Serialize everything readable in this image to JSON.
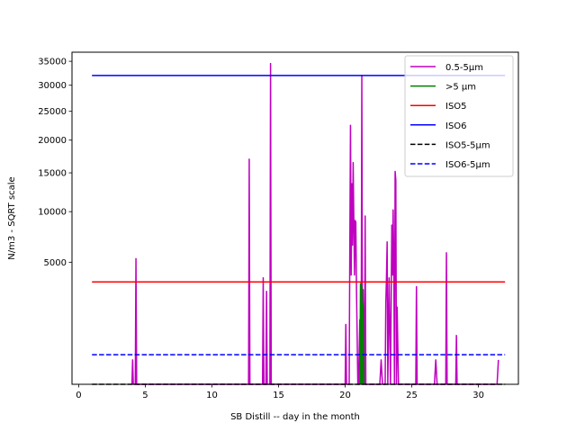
{
  "chart_data": {
    "type": "line",
    "xlabel": "SB Distill -- day in the month",
    "ylabel": "N/m3 - SQRT scale",
    "y_scale": "sqrt",
    "xlim": [
      -0.5,
      33
    ],
    "ylim": [
      0,
      37000
    ],
    "x_ticks": [
      0,
      5,
      10,
      15,
      20,
      25,
      30
    ],
    "y_ticks": [
      5000,
      10000,
      15000,
      20000,
      25000,
      30000,
      35000
    ],
    "grid": false,
    "legend": "top-right",
    "series": [
      {
        "name": "0.5-5µm",
        "color": "#bf00bf",
        "style": "solid",
        "x": [
          4.0,
          4.05,
          4.1,
          4.25,
          4.3,
          4.35,
          12.75,
          12.8,
          12.85,
          13.8,
          13.85,
          13.9,
          14.05,
          14.1,
          14.15,
          14.35,
          14.4,
          14.45,
          20.0,
          20.05,
          20.1,
          20.3,
          20.35,
          20.4,
          20.45,
          20.5,
          20.55,
          20.6,
          20.65,
          20.7,
          20.75,
          20.8,
          20.85,
          20.9,
          20.95,
          21.0,
          21.1,
          21.2,
          21.25,
          21.3,
          21.35,
          21.45,
          21.5,
          21.55,
          22.6,
          22.7,
          22.8,
          23.0,
          23.05,
          23.1,
          23.15,
          23.2,
          23.3,
          23.4,
          23.5,
          23.55,
          23.6,
          23.65,
          23.7,
          23.75,
          23.8,
          23.85,
          23.9,
          24.0,
          25.3,
          25.35,
          25.4,
          26.7,
          26.8,
          26.9,
          27.55,
          27.6,
          27.65,
          28.3,
          28.35,
          28.4,
          31.4,
          31.5
        ],
        "values": [
          0,
          200,
          0,
          0,
          5300,
          0,
          0,
          17000,
          0,
          0,
          3800,
          0,
          0,
          2900,
          0,
          0,
          34500,
          0,
          0,
          1200,
          0,
          0,
          6200,
          22500,
          4000,
          13500,
          6500,
          16500,
          9000,
          4000,
          9000,
          8800,
          3000,
          800,
          0,
          0,
          1400,
          0,
          32000,
          0,
          3000,
          0,
          9500,
          0,
          0,
          200,
          0,
          0,
          2200,
          3800,
          6800,
          0,
          3800,
          0,
          8500,
          4000,
          10200,
          5000,
          0,
          15200,
          14000,
          0,
          2000,
          0,
          0,
          3200,
          0,
          0,
          200,
          0,
          0,
          5800,
          0,
          0,
          800,
          0,
          0,
          200
        ]
      },
      {
        "name": ">5 µm",
        "color": "#008000",
        "style": "solid",
        "x": [
          21.1,
          21.15,
          21.2,
          21.25,
          21.3,
          21.35,
          21.4
        ],
        "values": [
          0,
          3400,
          0,
          3200,
          0,
          2200,
          0
        ]
      },
      {
        "name": "ISO5",
        "color": "#ff0000",
        "style": "solid",
        "x": [
          1,
          32
        ],
        "values": [
          3520,
          3520
        ]
      },
      {
        "name": "ISO6",
        "color": "#0000ff",
        "style": "solid",
        "x": [
          1,
          32
        ],
        "values": [
          32000,
          32000
        ]
      },
      {
        "name": "ISO5-5µm",
        "color": "#000000",
        "style": "dashed",
        "x": [
          1,
          32
        ],
        "values": [
          0,
          0
        ]
      },
      {
        "name": "ISO6-5µm",
        "color": "#0000ff",
        "style": "dashed",
        "x": [
          1,
          32
        ],
        "values": [
          293,
          293
        ]
      }
    ]
  }
}
